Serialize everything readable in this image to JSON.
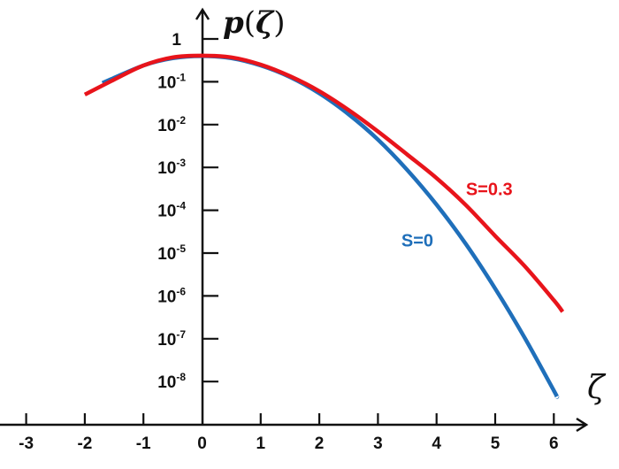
{
  "chart_data": {
    "type": "line",
    "title": "",
    "xlabel": "ζ",
    "ylabel": "p(ζ)",
    "ylabel_parts": {
      "p": "p",
      "open": "(",
      "zeta": "ζ",
      "close": ")"
    },
    "yscale": "log",
    "xlim": [
      -3.4,
      6.6
    ],
    "ylim": [
      1e-09,
      1
    ],
    "grid": false,
    "legend_position": "inline labels",
    "x_ticks": [
      "-3",
      "-2",
      "-1",
      "0",
      "1",
      "2",
      "3",
      "4",
      "5",
      "6"
    ],
    "y_ticks": [
      {
        "base": "1",
        "exp": ""
      },
      {
        "base": "10",
        "exp": "-1"
      },
      {
        "base": "10",
        "exp": "-2"
      },
      {
        "base": "10",
        "exp": "-3"
      },
      {
        "base": "10",
        "exp": "-4"
      },
      {
        "base": "10",
        "exp": "-5"
      },
      {
        "base": "10",
        "exp": "-6"
      },
      {
        "base": "10",
        "exp": "-7"
      },
      {
        "base": "10",
        "exp": "-8"
      }
    ],
    "series": [
      {
        "name": "S=0",
        "color": "#1f6fba",
        "x": [
          -1.7,
          -1.0,
          -0.5,
          0.0,
          0.5,
          1.0,
          1.5,
          2.0,
          2.5,
          3.0,
          3.5,
          4.0,
          4.5,
          5.0,
          5.5,
          6.0,
          6.05
        ],
        "log10y": [
          -1.03,
          -0.62,
          -0.45,
          -0.4,
          -0.45,
          -0.62,
          -0.89,
          -1.27,
          -1.76,
          -2.35,
          -3.06,
          -3.87,
          -4.79,
          -5.83,
          -6.97,
          -8.21,
          -8.35
        ]
      },
      {
        "name": "S=0.3",
        "color": "#e8141b",
        "x": [
          -2.0,
          -1.5,
          -1.0,
          -0.5,
          0.0,
          0.5,
          1.0,
          1.5,
          2.0,
          2.5,
          3.0,
          3.5,
          4.0,
          4.5,
          5.0,
          5.5,
          6.0,
          6.15
        ],
        "log10y": [
          -1.3,
          -0.95,
          -0.62,
          -0.43,
          -0.39,
          -0.43,
          -0.6,
          -0.87,
          -1.22,
          -1.66,
          -2.16,
          -2.7,
          -3.25,
          -3.88,
          -4.6,
          -5.3,
          -6.1,
          -6.37
        ]
      }
    ],
    "annotations": [
      {
        "text": "S=0.3",
        "color": "#e8141b",
        "x": 4.5,
        "log10y": -3.5
      },
      {
        "text": "S=0",
        "color": "#1f6fba",
        "x": 3.4,
        "log10y": -4.7
      }
    ]
  }
}
